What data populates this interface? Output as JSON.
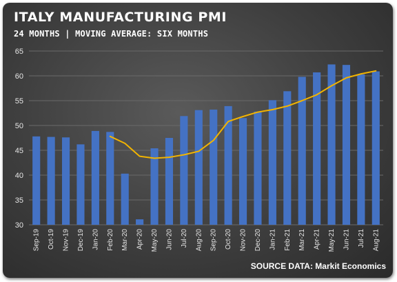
{
  "header": {
    "title": "ITALY MANUFACTURING PMI",
    "subtitle": "24 MONTHS | MOVING AVERAGE: SIX MONTHS"
  },
  "footer": {
    "source": "SOURCE DATA: Markit Economics"
  },
  "colors": {
    "bar": "#4472c4",
    "moving_average": "#f2b400",
    "gridline": "#6a6a6a",
    "text": "#e6e6e6"
  },
  "chart_data": {
    "type": "bar",
    "categories": [
      "Sep-19",
      "Oct-19",
      "Nov-19",
      "Dec-19",
      "Jan-20",
      "Feb-20",
      "Mar-20",
      "Apr-20",
      "May-20",
      "Jun-20",
      "Jul-20",
      "Aug-20",
      "Sep-20",
      "Oct-20",
      "Nov-20",
      "Dec-20",
      "Jan-21",
      "Feb-21",
      "Mar-21",
      "Apr-21",
      "May-21",
      "Jun-21",
      "Jul-21",
      "Aug-21"
    ],
    "series": [
      {
        "type": "bar",
        "values": [
          47.8,
          47.7,
          47.6,
          46.2,
          48.9,
          48.7,
          40.3,
          31.1,
          45.4,
          47.5,
          51.9,
          53.1,
          53.2,
          53.9,
          51.5,
          52.8,
          55.1,
          56.9,
          59.8,
          60.7,
          62.3,
          62.2,
          60.3,
          60.9
        ]
      },
      {
        "type": "line",
        "values": [
          null,
          null,
          null,
          null,
          null,
          47.8,
          46.4,
          43.8,
          43.4,
          43.6,
          44.1,
          44.8,
          47.0,
          50.8,
          51.8,
          52.7,
          53.2,
          53.9,
          55.0,
          56.2,
          58.0,
          59.6,
          60.4,
          61.0
        ]
      }
    ],
    "ylim": [
      30,
      65
    ],
    "yticks": [
      30,
      35,
      40,
      45,
      50,
      55,
      60,
      65
    ],
    "grid": true,
    "title": "ITALY MANUFACTURING PMI",
    "subtitle": "24 MONTHS | MOVING AVERAGE: SIX MONTHS",
    "xlabel": "",
    "ylabel": ""
  }
}
